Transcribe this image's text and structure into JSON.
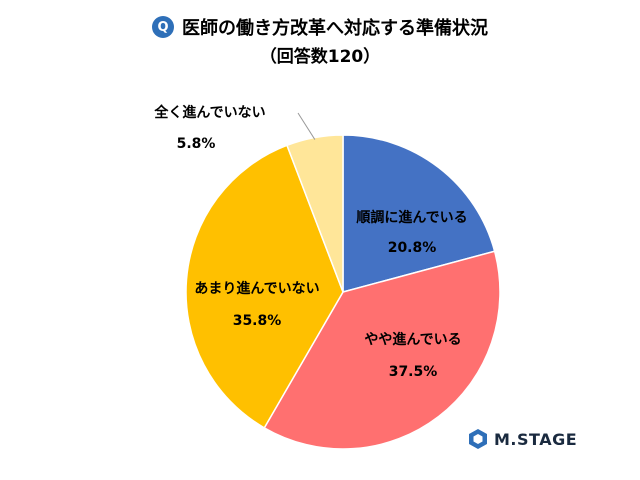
{
  "header": {
    "q_mark": "Q",
    "title": "医師の働き方改革へ対応する準備状況",
    "subtitle": "（回答数120）"
  },
  "chart_data": {
    "type": "pie",
    "start_angle_deg": 0,
    "direction": "clockwise",
    "slices": [
      {
        "label": "順調に進んでいる",
        "value": 20.8,
        "value_label": "20.8%",
        "color": "#4472c4"
      },
      {
        "label": "やや進んでいる",
        "value": 37.5,
        "value_label": "37.5%",
        "color": "#ff7070"
      },
      {
        "label": "あまり進んでいない",
        "value": 35.8,
        "value_label": "35.8%",
        "color": "#ffc000"
      },
      {
        "label": "全く進んでいない",
        "value": 5.8,
        "value_label": "5.8%",
        "color": "#ffe699"
      }
    ]
  },
  "logo": {
    "text": "M.STAGE",
    "icon": "mstage-hexagon-icon",
    "color": "#2e6fb8"
  }
}
